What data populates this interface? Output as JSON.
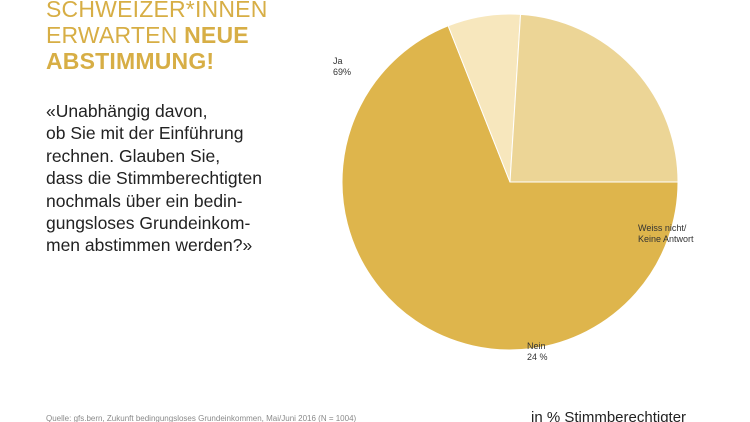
{
  "headline": {
    "line1": "SCHWEIZER*INNEN",
    "line2_normal": "ERWARTEN ",
    "line2_bold": "NEUE",
    "line3_bold": "ABSTIMMUNG!"
  },
  "question": {
    "lines": [
      "«Unabhängig davon,",
      "ob Sie mit der Einführung",
      "rechnen. Glauben Sie,",
      "dass die Stimmberechtigten",
      "nochmals über ein bedin-",
      "gungsloses Grundeinkom-",
      "men abstimmen werden?»"
    ]
  },
  "footnote": "Quelle: gfs.bern, Zukunft bedingungsloses Grundeinkommen, Mai/Juni 2016 (N = 1004)",
  "unit_label": "in % Stimmberechtigter",
  "colors": {
    "headline": "#d7ae45",
    "ja": "#deb54c",
    "nein": "#ecd596",
    "weiss_nicht": "#f7e7bd"
  },
  "chart_data": {
    "type": "pie",
    "title": "",
    "unit": "in % Stimmberechtigter",
    "start_angle_deg": 0,
    "direction": "clockwise",
    "slices": [
      {
        "label": "Ja",
        "value": 69,
        "value_text": "69%",
        "color": "#deb54c"
      },
      {
        "label": "Weiss nicht/\nKeine Antwort",
        "value": 7,
        "value_text": "",
        "color": "#f7e7bd"
      },
      {
        "label": "Nein",
        "value": 24,
        "value_text": "24 %",
        "color": "#ecd596"
      }
    ]
  }
}
